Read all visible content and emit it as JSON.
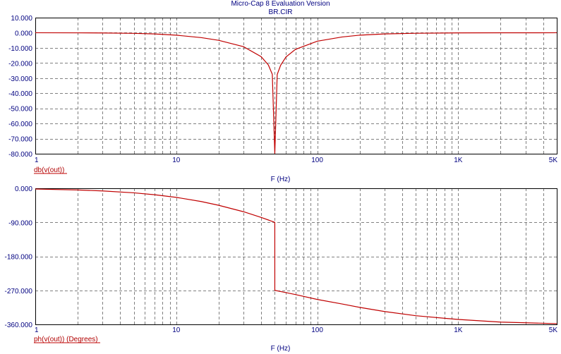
{
  "window": {
    "title": "Micro-Cap 8 Evaluation Version",
    "subtitle": "BR.CIR"
  },
  "colors": {
    "trace": "#c00000",
    "axis_text": "#000080",
    "grid": "#808080",
    "frame": "#000000"
  },
  "chart_data": [
    {
      "type": "line",
      "ylabel": "db(v(out))",
      "xlabel": "F (Hz)",
      "x_scale": "log",
      "xlim": [
        1,
        5000
      ],
      "ylim": [
        -80,
        10
      ],
      "yticks": [
        "10.000",
        "0.000",
        "-10.000",
        "-20.000",
        "-30.000",
        "-40.000",
        "-50.000",
        "-60.000",
        "-70.000",
        "-80.000"
      ],
      "xticks": [
        "1",
        "10",
        "100",
        "1K",
        "5K"
      ],
      "grid": true,
      "series": [
        {
          "x": [
            1,
            2,
            3,
            5,
            7,
            10,
            15,
            20,
            30,
            40,
            45,
            48,
            50,
            52,
            55,
            60,
            70,
            100,
            150,
            200,
            300,
            500,
            1000,
            2000,
            5000
          ],
          "y": [
            0,
            -0.05,
            -0.15,
            -0.4,
            -0.8,
            -1.6,
            -3.2,
            -5.0,
            -9.2,
            -15.8,
            -21.3,
            -27.5,
            -80,
            -27.6,
            -21.5,
            -16.0,
            -11.0,
            -5.6,
            -2.8,
            -1.6,
            -0.8,
            -0.35,
            -0.1,
            -0.03,
            0
          ]
        }
      ]
    },
    {
      "type": "line",
      "ylabel": "ph(v(out)) (Degrees)",
      "xlabel": "F (Hz)",
      "x_scale": "log",
      "xlim": [
        1,
        5000
      ],
      "ylim": [
        -360,
        0
      ],
      "yticks": [
        "0.000",
        "-90.000",
        "-180.000",
        "-270.000",
        "-360.000"
      ],
      "xticks": [
        "1",
        "10",
        "100",
        "1K",
        "5K"
      ],
      "grid": true,
      "series": [
        {
          "x": [
            1,
            2,
            3,
            5,
            7,
            10,
            15,
            20,
            30,
            40,
            50,
            50.01,
            60,
            70,
            100,
            150,
            200,
            300,
            500,
            1000,
            2000,
            5000
          ],
          "y": [
            -2,
            -4.5,
            -7,
            -12,
            -17,
            -24,
            -35,
            -45,
            -62,
            -77,
            -90,
            -270,
            -276,
            -281,
            -294,
            -306,
            -315,
            -326,
            -337,
            -347,
            -354,
            -358
          ]
        }
      ]
    }
  ]
}
